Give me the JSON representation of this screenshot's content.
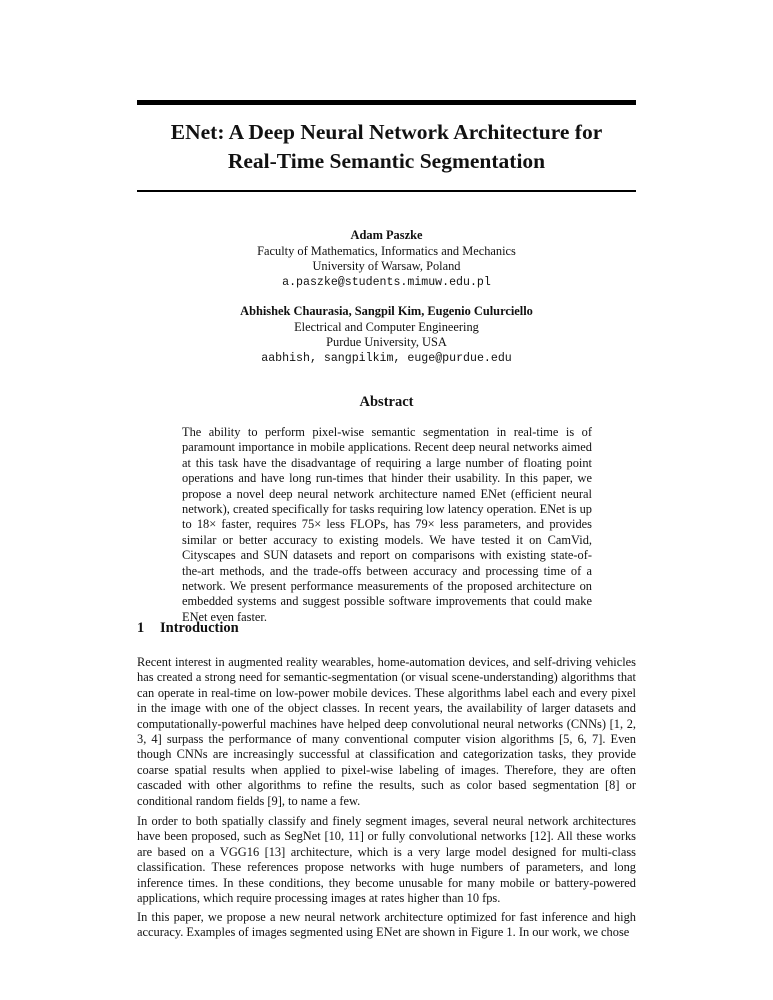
{
  "paper": {
    "title_line1": "ENet: A Deep Neural Network Architecture for",
    "title_line2": "Real-Time Semantic Segmentation",
    "authors": [
      {
        "names": "Adam Paszke",
        "affiliation1": "Faculty of Mathematics, Informatics and Mechanics",
        "affiliation2": "University of Warsaw, Poland",
        "email": "a.paszke@students.mimuw.edu.pl"
      },
      {
        "names": "Abhishek Chaurasia, Sangpil Kim, Eugenio Culurciello",
        "affiliation1": "Electrical and Computer Engineering",
        "affiliation2": "Purdue University, USA",
        "email": "aabhish, sangpilkim, euge@purdue.edu"
      }
    ],
    "abstract_heading": "Abstract",
    "abstract": "The ability to perform pixel-wise semantic segmentation in real-time is of paramount importance in mobile applications. Recent deep neural networks aimed at this task have the disadvantage of requiring a large number of floating point operations and have long run-times that hinder their usability. In this paper, we propose a novel deep neural network architecture named ENet (efficient neural network), created specifically for tasks requiring low latency operation. ENet is up to 18× faster, requires 75× less FLOPs, has 79× less parameters, and provides similar or better accuracy to existing models. We have tested it on CamVid, Cityscapes and SUN datasets and report on comparisons with existing state-of-the-art methods, and the trade-offs between accuracy and processing time of a network. We present performance measurements of the proposed architecture on embedded systems and suggest possible software improvements that could make ENet even faster.",
    "section1": {
      "number": "1",
      "title": "Introduction",
      "paragraphs": [
        "Recent interest in augmented reality wearables, home-automation devices, and self-driving vehicles has created a strong need for semantic-segmentation (or visual scene-understanding) algorithms that can operate in real-time on low-power mobile devices. These algorithms label each and every pixel in the image with one of the object classes. In recent years, the availability of larger datasets and computationally-powerful machines have helped deep convolutional neural networks (CNNs) [1, 2, 3, 4] surpass the performance of many conventional computer vision algorithms [5, 6, 7]. Even though CNNs are increasingly successful at classification and categorization tasks, they provide coarse spatial results when applied to pixel-wise labeling of images. Therefore, they are often cascaded with other algorithms to refine the results, such as color based segmentation [8] or conditional random fields [9], to name a few.",
        "In order to both spatially classify and finely segment images, several neural network architectures have been proposed, such as SegNet [10, 11] or fully convolutional networks [12]. All these works are based on a VGG16 [13] architecture, which is a very large model designed for multi-class classification. These references propose networks with huge numbers of parameters, and long inference times. In these conditions, they become unusable for many mobile or battery-powered applications, which require processing images at rates higher than 10 fps.",
        "In this paper, we propose a new neural network architecture optimized for fast inference and high accuracy. Examples of images segmented using ENet are shown in Figure 1. In our work, we chose"
      ]
    }
  }
}
